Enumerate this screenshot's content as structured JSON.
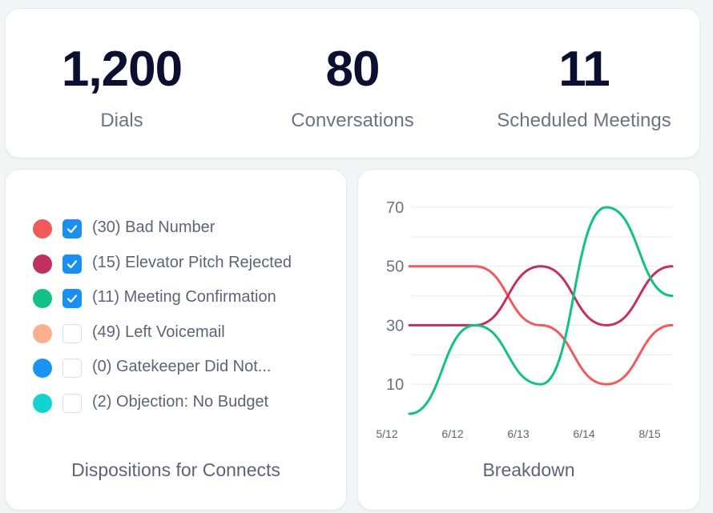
{
  "stats": [
    {
      "value": "1,200",
      "label": "Dials"
    },
    {
      "value": "80",
      "label": "Conversations"
    },
    {
      "value": "11",
      "label": "Scheduled Meetings"
    }
  ],
  "dispositions": {
    "title": "Dispositions for Connects",
    "items": [
      {
        "label": "(30) Bad Number",
        "color": "#f05a5a",
        "checked": true
      },
      {
        "label": "(15) Elevator Pitch Rejected",
        "color": "#c2305f",
        "checked": true
      },
      {
        "label": "(11) Meeting Confirmation",
        "color": "#12c184",
        "checked": true
      },
      {
        "label": "(49) Left Voicemail",
        "color": "#f8b08e",
        "checked": false
      },
      {
        "label": "(0) Gatekeeper Did Not...",
        "color": "#1b93f2",
        "checked": false
      },
      {
        "label": "(2) Objection: No Budget",
        "color": "#12d3d0",
        "checked": false
      }
    ]
  },
  "breakdown": {
    "title": "Breakdown",
    "chart_data": {
      "type": "line",
      "title": "Breakdown",
      "x": [
        "5/12",
        "6/12",
        "6/13",
        "6/14",
        "8/15"
      ],
      "yticks": [
        "70",
        "50",
        "30",
        "10"
      ],
      "ylim": [
        0,
        70
      ],
      "grid": true,
      "smooth": true,
      "series": [
        {
          "color": "#f05a5a",
          "values": [
            50,
            50,
            30,
            10,
            30
          ]
        },
        {
          "color": "#c2305f",
          "values": [
            30,
            30,
            50,
            30,
            50
          ]
        },
        {
          "color": "#12c184",
          "values": [
            0,
            30,
            10,
            70,
            40
          ]
        }
      ]
    }
  }
}
